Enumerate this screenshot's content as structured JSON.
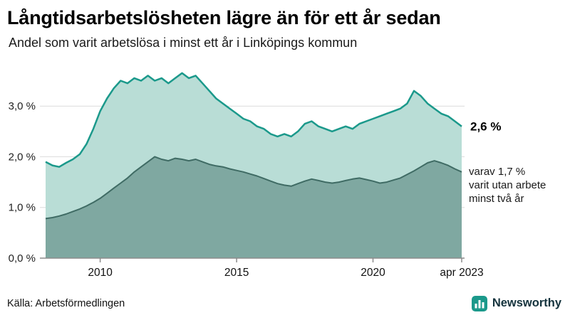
{
  "header": {
    "title": "Långtidsarbetslösheten lägre än för ett år sedan",
    "subtitle": "Andel som varit arbetslösa i minst ett år i Linköpings kommun"
  },
  "footer": {
    "source": "Källa: Arbetsförmedlingen",
    "brand": "Newsworthy"
  },
  "colors": {
    "brand_teal": "#1b998b",
    "brand_text": "#14333d"
  },
  "chart_data": {
    "type": "area",
    "title": "Långtidsarbetslösheten lägre än för ett år sedan",
    "xlabel": "",
    "ylabel": "",
    "ylim": [
      0,
      3.9
    ],
    "grid": true,
    "grid_color": "#dcdcdc",
    "axis_color": "#8c8c8c",
    "x": [
      2008,
      2008.25,
      2008.5,
      2008.75,
      2009,
      2009.25,
      2009.5,
      2009.75,
      2010,
      2010.25,
      2010.5,
      2010.75,
      2011,
      2011.25,
      2011.5,
      2011.75,
      2012,
      2012.25,
      2012.5,
      2012.75,
      2013,
      2013.25,
      2013.5,
      2013.75,
      2014,
      2014.25,
      2014.5,
      2014.75,
      2015,
      2015.25,
      2015.5,
      2015.75,
      2016,
      2016.25,
      2016.5,
      2016.75,
      2017,
      2017.25,
      2017.5,
      2017.75,
      2018,
      2018.25,
      2018.5,
      2018.75,
      2019,
      2019.25,
      2019.5,
      2019.75,
      2020,
      2020.25,
      2020.5,
      2020.75,
      2021,
      2021.25,
      2021.5,
      2021.75,
      2022,
      2022.25,
      2022.5,
      2022.75,
      2023,
      2023.25
    ],
    "series": [
      {
        "name": "Arbetslösa minst ett år",
        "fill": "#b9ddd6",
        "stroke": "#1b998b",
        "line_width": 2.5,
        "values": [
          1.9,
          1.83,
          1.8,
          1.88,
          1.95,
          2.05,
          2.25,
          2.55,
          2.9,
          3.15,
          3.35,
          3.5,
          3.45,
          3.55,
          3.5,
          3.6,
          3.5,
          3.55,
          3.45,
          3.55,
          3.65,
          3.55,
          3.6,
          3.45,
          3.3,
          3.15,
          3.05,
          2.95,
          2.85,
          2.75,
          2.7,
          2.6,
          2.55,
          2.45,
          2.4,
          2.45,
          2.4,
          2.5,
          2.65,
          2.7,
          2.6,
          2.55,
          2.5,
          2.55,
          2.6,
          2.55,
          2.65,
          2.7,
          2.75,
          2.8,
          2.85,
          2.9,
          2.95,
          3.05,
          3.3,
          3.2,
          3.05,
          2.95,
          2.85,
          2.8,
          2.7,
          2.6
        ]
      },
      {
        "name": "Arbetslösa minst två år",
        "fill": "#7fa8a1",
        "stroke": "#3f6b64",
        "line_width": 2,
        "values": [
          0.78,
          0.8,
          0.83,
          0.87,
          0.92,
          0.97,
          1.03,
          1.1,
          1.18,
          1.28,
          1.38,
          1.48,
          1.58,
          1.7,
          1.8,
          1.9,
          2.0,
          1.95,
          1.92,
          1.97,
          1.95,
          1.92,
          1.95,
          1.9,
          1.85,
          1.82,
          1.8,
          1.76,
          1.73,
          1.7,
          1.66,
          1.62,
          1.57,
          1.52,
          1.47,
          1.44,
          1.42,
          1.47,
          1.52,
          1.56,
          1.53,
          1.5,
          1.48,
          1.5,
          1.53,
          1.56,
          1.58,
          1.55,
          1.52,
          1.48,
          1.5,
          1.54,
          1.58,
          1.65,
          1.72,
          1.8,
          1.88,
          1.92,
          1.88,
          1.83,
          1.76,
          1.7
        ]
      }
    ],
    "yticks": [
      {
        "value": 0,
        "label": "0,0 %"
      },
      {
        "value": 1,
        "label": "1,0 %"
      },
      {
        "value": 2,
        "label": "2,0 %"
      },
      {
        "value": 3,
        "label": "3,0 %"
      }
    ],
    "xticks": [
      {
        "value": 2010,
        "label": "2010"
      },
      {
        "value": 2015,
        "label": "2015"
      },
      {
        "value": 2020,
        "label": "2020"
      },
      {
        "value": 2023.25,
        "label": "apr 2023"
      }
    ],
    "annotations": {
      "end_label": "2,6 %",
      "end_value": 2.6,
      "side_value": 1.7,
      "side_note": [
        "varav 1,7 %",
        "varit utan arbete",
        "minst två år"
      ]
    }
  }
}
